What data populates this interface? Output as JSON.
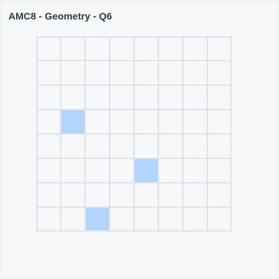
{
  "header": {
    "title": "AMC8 - Geometry - Q6"
  },
  "grid": {
    "rows": 8,
    "cols": 8,
    "cell_fill": "#f7f8fa",
    "line_color": "#dfe2e6",
    "highlight_color": "#b3d4fb",
    "highlighted_cells": [
      {
        "row": 3,
        "col": 1
      },
      {
        "row": 5,
        "col": 4
      },
      {
        "row": 7,
        "col": 2
      }
    ]
  }
}
